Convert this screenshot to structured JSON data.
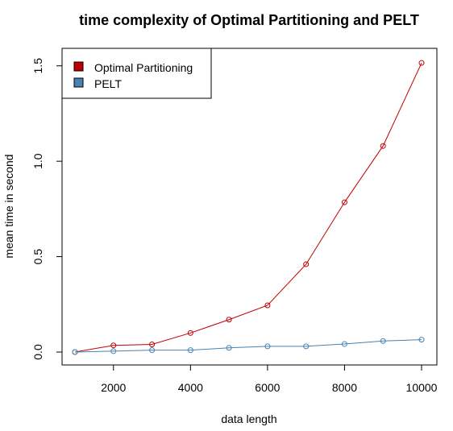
{
  "chart_data": {
    "type": "line",
    "title": "time complexity of Optimal Partitioning and PELT",
    "xlabel": "data length",
    "ylabel": "mean time in second",
    "xlim": [
      1000,
      10000
    ],
    "ylim": [
      0,
      1.52
    ],
    "x_ticks": [
      2000,
      4000,
      6000,
      8000,
      10000
    ],
    "x_tick_labels": [
      "2000",
      "4000",
      "6000",
      "8000",
      "10000"
    ],
    "y_ticks": [
      0.0,
      0.5,
      1.0,
      1.5
    ],
    "y_tick_labels": [
      "0.0",
      "0.5",
      "1.0",
      "1.5"
    ],
    "grid": false,
    "legend_position": "top-left",
    "x": [
      1000,
      2000,
      3000,
      4000,
      5000,
      6000,
      7000,
      8000,
      9000,
      10000
    ],
    "series": [
      {
        "name": "Optimal Partitioning",
        "color": "#c00000",
        "values": [
          0.0,
          0.035,
          0.04,
          0.1,
          0.17,
          0.245,
          0.46,
          0.785,
          1.08,
          1.515
        ]
      },
      {
        "name": "PELT",
        "color": "#4682b4",
        "values": [
          0.0,
          0.005,
          0.01,
          0.01,
          0.022,
          0.03,
          0.03,
          0.042,
          0.058,
          0.065
        ]
      }
    ]
  }
}
